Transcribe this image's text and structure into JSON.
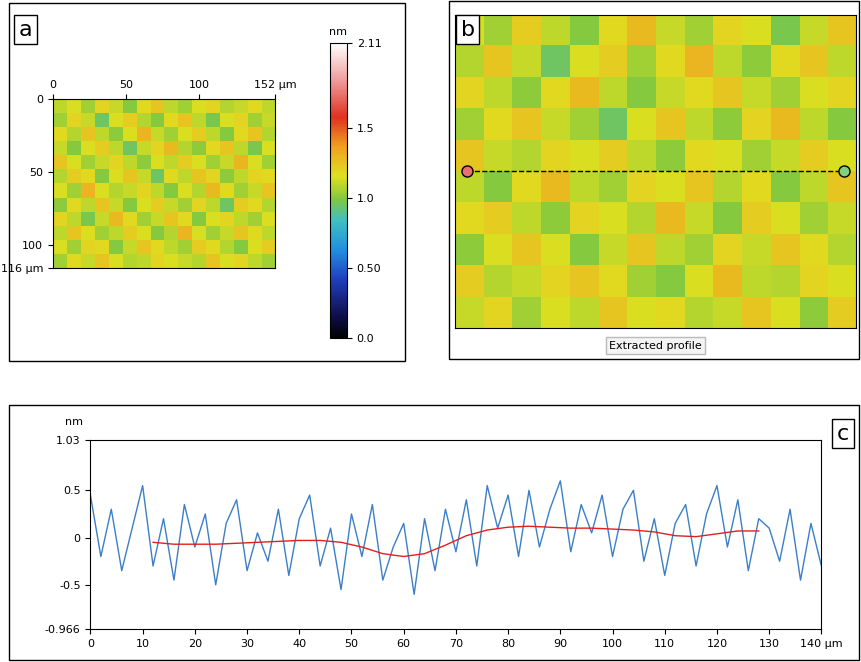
{
  "chart_data": [
    {
      "type": "heatmap",
      "label": "a",
      "xlim": [
        0,
        152
      ],
      "ylim": [
        116,
        0
      ],
      "xticks": [
        0,
        50,
        100,
        {
          "value": 152,
          "label": "152 µm"
        }
      ],
      "yticks": [
        0,
        50,
        100,
        {
          "value": 116,
          "label": "116 µm"
        }
      ],
      "colorbar_label": "nm",
      "colorbar_range": [
        0,
        2.11
      ],
      "colorbar_ticks": [
        {
          "value": 0,
          "label": "0.0"
        },
        {
          "value": 0.5,
          "label": "0.50"
        },
        {
          "value": 1,
          "label": "1.0"
        },
        1.5,
        2.11
      ],
      "cells": [
        [
          1.1,
          1.15,
          1.05,
          1.2,
          1.12,
          1.0,
          1.18,
          1.25,
          1.1,
          1.05,
          1.15,
          1.2,
          1.08,
          1.12,
          1.18,
          1.1
        ],
        [
          1.05,
          1.2,
          1.12,
          0.95,
          1.15,
          1.22,
          1.08,
          1.0,
          1.18,
          1.25,
          1.1,
          0.98,
          1.15,
          1.2,
          1.05,
          1.12
        ],
        [
          1.18,
          1.08,
          1.25,
          1.1,
          1.02,
          1.15,
          1.3,
          1.12,
          1.05,
          1.15,
          1.22,
          1.1,
          1.0,
          1.18,
          1.25,
          1.08
        ],
        [
          1.12,
          1.0,
          1.15,
          1.22,
          1.1,
          0.95,
          1.12,
          1.2,
          1.28,
          1.08,
          1.02,
          1.18,
          1.25,
          1.1,
          0.98,
          1.15
        ],
        [
          1.25,
          1.15,
          1.05,
          1.12,
          1.2,
          1.1,
          1.02,
          1.15,
          1.1,
          1.22,
          1.15,
          1.05,
          1.12,
          1.3,
          1.15,
          1.05
        ],
        [
          1.08,
          1.22,
          1.18,
          1.0,
          1.15,
          1.25,
          1.12,
          0.95,
          1.18,
          1.1,
          1.25,
          1.2,
          1.02,
          1.1,
          1.2,
          1.18
        ],
        [
          1.15,
          1.05,
          1.3,
          1.15,
          1.08,
          1.12,
          1.2,
          1.1,
          1.0,
          1.15,
          1.08,
          1.28,
          1.18,
          1.05,
          1.12,
          1.25
        ],
        [
          1.02,
          1.18,
          1.1,
          1.25,
          1.12,
          1.0,
          1.15,
          1.22,
          1.12,
          1.05,
          1.2,
          1.1,
          0.95,
          1.22,
          1.18,
          1.08
        ],
        [
          1.2,
          1.1,
          0.98,
          1.12,
          1.28,
          1.18,
          1.05,
          1.12,
          1.25,
          1.18,
          1.0,
          1.15,
          1.2,
          1.1,
          1.05,
          1.15
        ],
        [
          1.1,
          1.25,
          1.15,
          1.05,
          1.1,
          1.22,
          1.15,
          1.0,
          1.08,
          1.3,
          1.15,
          1.05,
          1.12,
          1.25,
          1.18,
          1.1
        ],
        [
          1.15,
          1.05,
          1.2,
          1.18,
          1.0,
          1.12,
          1.25,
          1.18,
          1.1,
          1.05,
          1.22,
          1.18,
          1.08,
          1.0,
          1.15,
          1.22
        ],
        [
          1.05,
          1.18,
          1.12,
          1.25,
          1.15,
          1.08,
          1.1,
          1.2,
          1.15,
          1.12,
          1.08,
          1.25,
          1.15,
          1.2,
          1.1,
          1.05
        ]
      ]
    },
    {
      "type": "heatmap",
      "label": "b",
      "caption": "Extracted profile",
      "tick_labels": false,
      "cells": [
        [
          1.15,
          1.05,
          1.22,
          1.1,
          1.0,
          1.18,
          1.28,
          1.12,
          1.05,
          1.2,
          1.15,
          0.98,
          1.12,
          1.25
        ],
        [
          1.08,
          1.25,
          1.12,
          0.95,
          1.15,
          1.22,
          1.05,
          1.18,
          1.3,
          1.1,
          1.02,
          1.18,
          1.25,
          1.1
        ],
        [
          1.2,
          1.1,
          1.02,
          1.18,
          1.28,
          1.1,
          1.0,
          1.12,
          1.18,
          1.25,
          1.12,
          1.05,
          1.15,
          1.2
        ],
        [
          1.05,
          1.18,
          1.25,
          1.12,
          1.05,
          0.95,
          1.15,
          1.25,
          1.1,
          1.02,
          1.2,
          1.28,
          1.1,
          1.0
        ],
        [
          1.25,
          1.12,
          1.08,
          1.2,
          1.15,
          1.22,
          1.1,
          1.02,
          1.18,
          1.15,
          1.05,
          1.12,
          1.22,
          1.15
        ],
        [
          1.1,
          1.0,
          1.18,
          1.28,
          1.1,
          1.05,
          1.2,
          1.15,
          1.25,
          1.08,
          1.18,
          1.0,
          1.1,
          1.25
        ],
        [
          1.18,
          1.22,
          1.1,
          1.02,
          1.2,
          1.15,
          1.08,
          1.28,
          1.12,
          1.0,
          1.22,
          1.15,
          1.05,
          1.12
        ],
        [
          1.02,
          1.15,
          1.25,
          1.15,
          1.0,
          1.12,
          1.25,
          1.1,
          1.05,
          1.2,
          1.12,
          1.25,
          1.18,
          1.08
        ],
        [
          1.22,
          1.08,
          1.12,
          1.2,
          1.25,
          1.18,
          1.05,
          1.0,
          1.15,
          1.28,
          1.1,
          1.08,
          1.2,
          1.15
        ],
        [
          1.12,
          1.2,
          1.05,
          1.15,
          1.1,
          1.25,
          1.15,
          1.18,
          1.08,
          1.12,
          1.25,
          1.15,
          1.02,
          1.22
        ]
      ]
    },
    {
      "type": "line",
      "label": "c",
      "y_label": "nm",
      "grid": false,
      "xlim": [
        0,
        140
      ],
      "ylim": [
        -0.966,
        1.03
      ],
      "xticks": [
        0,
        10,
        20,
        30,
        40,
        50,
        60,
        70,
        80,
        90,
        100,
        110,
        120,
        130,
        {
          "value": 140,
          "label": "140 µm"
        }
      ],
      "yticks": [
        -0.966,
        -0.5,
        0,
        0.5,
        1.03
      ],
      "series": [
        {
          "color": "#3a7fc8",
          "x": [
            0,
            2,
            4,
            6,
            8,
            10,
            12,
            14,
            16,
            18,
            20,
            22,
            24,
            26,
            28,
            30,
            32,
            34,
            36,
            38,
            40,
            42,
            44,
            46,
            48,
            50,
            52,
            54,
            56,
            58,
            60,
            62,
            64,
            66,
            68,
            70,
            72,
            74,
            76,
            78,
            80,
            82,
            84,
            86,
            88,
            90,
            92,
            94,
            96,
            98,
            100,
            102,
            104,
            106,
            108,
            110,
            112,
            114,
            116,
            118,
            120,
            122,
            124,
            126,
            128,
            130,
            132,
            134,
            136,
            138,
            140
          ],
          "values": [
            0.45,
            -0.2,
            0.3,
            -0.35,
            0.1,
            0.55,
            -0.3,
            0.2,
            -0.45,
            0.35,
            -0.1,
            0.25,
            -0.5,
            0.15,
            0.4,
            -0.35,
            0.05,
            -0.25,
            0.3,
            -0.4,
            0.2,
            0.45,
            -0.3,
            0.1,
            -0.55,
            0.25,
            -0.2,
            0.35,
            -0.45,
            -0.1,
            0.15,
            -0.6,
            0.2,
            -0.35,
            0.3,
            -0.15,
            0.4,
            -0.3,
            0.55,
            0.1,
            0.45,
            -0.2,
            0.5,
            -0.1,
            0.3,
            0.6,
            -0.15,
            0.35,
            0.05,
            0.45,
            -0.2,
            0.3,
            0.5,
            -0.25,
            0.2,
            -0.4,
            0.15,
            0.35,
            -0.3,
            0.25,
            0.55,
            -0.1,
            0.4,
            -0.35,
            0.2,
            0.1,
            -0.25,
            0.3,
            -0.45,
            0.15,
            -0.3
          ]
        },
        {
          "color": "#e02020",
          "x": [
            12,
            16,
            20,
            24,
            28,
            32,
            36,
            40,
            44,
            48,
            52,
            56,
            60,
            64,
            68,
            72,
            76,
            80,
            84,
            88,
            92,
            96,
            100,
            104,
            108,
            112,
            116,
            120,
            124,
            128
          ],
          "values": [
            -0.05,
            -0.07,
            -0.07,
            -0.07,
            -0.06,
            -0.05,
            -0.04,
            -0.03,
            -0.03,
            -0.05,
            -0.1,
            -0.17,
            -0.2,
            -0.17,
            -0.08,
            0.02,
            0.08,
            0.11,
            0.12,
            0.11,
            0.1,
            0.1,
            0.09,
            0.08,
            0.06,
            0.02,
            0.01,
            0.04,
            0.07,
            0.07
          ]
        }
      ]
    }
  ]
}
